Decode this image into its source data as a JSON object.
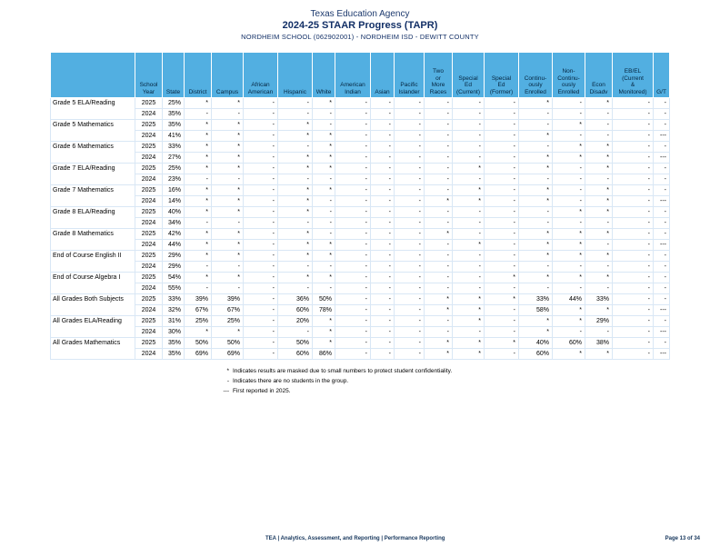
{
  "header": {
    "line1": "Texas Education Agency",
    "line2": "2024-25 STAAR Progress (TAPR)",
    "line3": "NORDHEIM SCHOOL (062902001) - NORDHEIM ISD - DEWITT COUNTY"
  },
  "colors": {
    "header_bg": "#52afe1",
    "title_navy": "#122f66",
    "body_border": "#d9e7f5",
    "footer_navy": "#16365c"
  },
  "table": {
    "columns": [
      "",
      "School\nYear",
      "State",
      "District",
      "Campus",
      "African\nAmerican",
      "Hispanic",
      "White",
      "American\nIndian",
      "Asian",
      "Pacific\nIslander",
      "Two\nor\nMore\nRaces",
      "Special\nEd\n(Current)",
      "Special\nEd\n(Former)",
      "Continu-\nously\nEnrolled",
      "Non-\nContinu-\nously\nEnrolled",
      "Econ\nDisadv",
      "EB/EL\n(Current\n&\nMonitored)",
      "G/T"
    ],
    "value_column_keys": [
      "state",
      "district",
      "campus",
      "african_american",
      "hispanic",
      "white",
      "american_indian",
      "asian",
      "pacific_islander",
      "two_or_more_races",
      "special_ed_current",
      "special_ed_former",
      "continuously_enrolled",
      "non_continuously_enrolled",
      "econ_disadv",
      "eb_el",
      "gt"
    ],
    "groups": [
      {
        "subject": "Grade 5 ELA/Reading",
        "rows": [
          {
            "year": "2025",
            "values": [
              "25%",
              "*",
              "*",
              "-",
              "-",
              "*",
              "-",
              "-",
              "-",
              "-",
              "-",
              "-",
              "*",
              "-",
              "*",
              "-",
              "-"
            ]
          },
          {
            "year": "2024",
            "values": [
              "35%",
              "-",
              "-",
              "-",
              "-",
              "-",
              "-",
              "-",
              "-",
              "-",
              "-",
              "-",
              "-",
              "-",
              "-",
              "-",
              "-"
            ]
          }
        ]
      },
      {
        "subject": "Grade 5 Mathematics",
        "rows": [
          {
            "year": "2025",
            "values": [
              "35%",
              "*",
              "*",
              "-",
              "*",
              "-",
              "-",
              "-",
              "-",
              "-",
              "-",
              "-",
              "-",
              "*",
              "-",
              "-",
              "-"
            ]
          },
          {
            "year": "2024",
            "values": [
              "41%",
              "*",
              "*",
              "-",
              "*",
              "*",
              "-",
              "-",
              "-",
              "-",
              "-",
              "-",
              "*",
              "-",
              "-",
              "-",
              "---"
            ]
          }
        ]
      },
      {
        "subject": "Grade 6 Mathematics",
        "rows": [
          {
            "year": "2025",
            "values": [
              "33%",
              "*",
              "*",
              "-",
              "-",
              "*",
              "-",
              "-",
              "-",
              "-",
              "-",
              "-",
              "-",
              "*",
              "*",
              "-",
              "-"
            ]
          },
          {
            "year": "2024",
            "values": [
              "27%",
              "*",
              "*",
              "-",
              "*",
              "*",
              "-",
              "-",
              "-",
              "-",
              "-",
              "-",
              "*",
              "*",
              "*",
              "-",
              "---"
            ]
          }
        ]
      },
      {
        "subject": "Grade 7 ELA/Reading",
        "rows": [
          {
            "year": "2025",
            "values": [
              "25%",
              "*",
              "*",
              "-",
              "*",
              "*",
              "-",
              "-",
              "-",
              "-",
              "*",
              "-",
              "*",
              "-",
              "*",
              "-",
              "-"
            ]
          },
          {
            "year": "2024",
            "values": [
              "23%",
              "-",
              "-",
              "-",
              "-",
              "-",
              "-",
              "-",
              "-",
              "-",
              "-",
              "-",
              "-",
              "-",
              "-",
              "-",
              "-"
            ]
          }
        ]
      },
      {
        "subject": "Grade 7 Mathematics",
        "rows": [
          {
            "year": "2025",
            "values": [
              "16%",
              "*",
              "*",
              "-",
              "*",
              "*",
              "-",
              "-",
              "-",
              "-",
              "*",
              "-",
              "*",
              "-",
              "*",
              "-",
              "-"
            ]
          },
          {
            "year": "2024",
            "values": [
              "14%",
              "*",
              "*",
              "-",
              "*",
              "-",
              "-",
              "-",
              "-",
              "*",
              "*",
              "-",
              "*",
              "-",
              "*",
              "-",
              "---"
            ]
          }
        ]
      },
      {
        "subject": "Grade 8 ELA/Reading",
        "rows": [
          {
            "year": "2025",
            "values": [
              "40%",
              "*",
              "*",
              "-",
              "*",
              "-",
              "-",
              "-",
              "-",
              "-",
              "-",
              "-",
              "-",
              "*",
              "*",
              "-",
              "-"
            ]
          },
          {
            "year": "2024",
            "values": [
              "34%",
              "-",
              "-",
              "-",
              "-",
              "-",
              "-",
              "-",
              "-",
              "-",
              "-",
              "-",
              "-",
              "-",
              "-",
              "-",
              "-"
            ]
          }
        ]
      },
      {
        "subject": "Grade 8 Mathematics",
        "rows": [
          {
            "year": "2025",
            "values": [
              "42%",
              "*",
              "*",
              "-",
              "*",
              "-",
              "-",
              "-",
              "-",
              "*",
              "-",
              "-",
              "*",
              "*",
              "*",
              "-",
              "-"
            ]
          },
          {
            "year": "2024",
            "values": [
              "44%",
              "*",
              "*",
              "-",
              "*",
              "*",
              "-",
              "-",
              "-",
              "-",
              "*",
              "-",
              "*",
              "*",
              "-",
              "-",
              "---"
            ]
          }
        ]
      },
      {
        "subject": "End of Course English II",
        "rows": [
          {
            "year": "2025",
            "values": [
              "29%",
              "*",
              "*",
              "-",
              "*",
              "*",
              "-",
              "-",
              "-",
              "-",
              "-",
              "-",
              "*",
              "*",
              "*",
              "-",
              "-"
            ]
          },
          {
            "year": "2024",
            "values": [
              "29%",
              "-",
              "-",
              "-",
              "-",
              "-",
              "-",
              "-",
              "-",
              "-",
              "-",
              "-",
              "-",
              "-",
              "-",
              "-",
              "-"
            ]
          }
        ]
      },
      {
        "subject": "End of Course Algebra I",
        "rows": [
          {
            "year": "2025",
            "values": [
              "54%",
              "*",
              "*",
              "-",
              "*",
              "*",
              "-",
              "-",
              "-",
              "-",
              "-",
              "*",
              "*",
              "*",
              "*",
              "-",
              "-"
            ]
          },
          {
            "year": "2024",
            "values": [
              "55%",
              "-",
              "-",
              "-",
              "-",
              "-",
              "-",
              "-",
              "-",
              "-",
              "-",
              "-",
              "-",
              "-",
              "-",
              "-",
              "-"
            ]
          }
        ]
      },
      {
        "subject": "All Grades Both Subjects",
        "rows": [
          {
            "year": "2025",
            "values": [
              "33%",
              "39%",
              "39%",
              "-",
              "36%",
              "50%",
              "-",
              "-",
              "-",
              "*",
              "*",
              "*",
              "33%",
              "44%",
              "33%",
              "-",
              "-"
            ]
          },
          {
            "year": "2024",
            "values": [
              "32%",
              "67%",
              "67%",
              "-",
              "60%",
              "78%",
              "-",
              "-",
              "-",
              "*",
              "*",
              "-",
              "58%",
              "*",
              "*",
              "-",
              "---"
            ]
          }
        ]
      },
      {
        "subject": "All Grades ELA/Reading",
        "rows": [
          {
            "year": "2025",
            "values": [
              "31%",
              "25%",
              "25%",
              "-",
              "20%",
              "*",
              "-",
              "-",
              "-",
              "-",
              "*",
              "-",
              "*",
              "*",
              "29%",
              "-",
              "-"
            ]
          },
          {
            "year": "2024",
            "values": [
              "30%",
              "*",
              "*",
              "-",
              "-",
              "*",
              "-",
              "-",
              "-",
              "-",
              "-",
              "-",
              "*",
              "-",
              "-",
              "-",
              "---"
            ]
          }
        ]
      },
      {
        "subject": "All Grades Mathematics",
        "rows": [
          {
            "year": "2025",
            "values": [
              "35%",
              "50%",
              "50%",
              "-",
              "50%",
              "*",
              "-",
              "-",
              "-",
              "*",
              "*",
              "*",
              "40%",
              "60%",
              "38%",
              "-",
              "-"
            ]
          },
          {
            "year": "2024",
            "values": [
              "35%",
              "69%",
              "69%",
              "-",
              "60%",
              "86%",
              "-",
              "-",
              "-",
              "*",
              "*",
              "-",
              "60%",
              "*",
              "*",
              "-",
              "---"
            ]
          }
        ]
      }
    ]
  },
  "footnotes": [
    {
      "symbol": "*",
      "text": "Indicates results are masked due to small numbers to protect student confidentiality."
    },
    {
      "symbol": "-",
      "text": "Indicates there are no students in the group."
    },
    {
      "symbol": "---",
      "text": "First reported in 2025."
    }
  ],
  "footer": {
    "left": "TEA | Analytics, Assessment, and Reporting | Performance Reporting",
    "page": "Page 13 of 34"
  }
}
